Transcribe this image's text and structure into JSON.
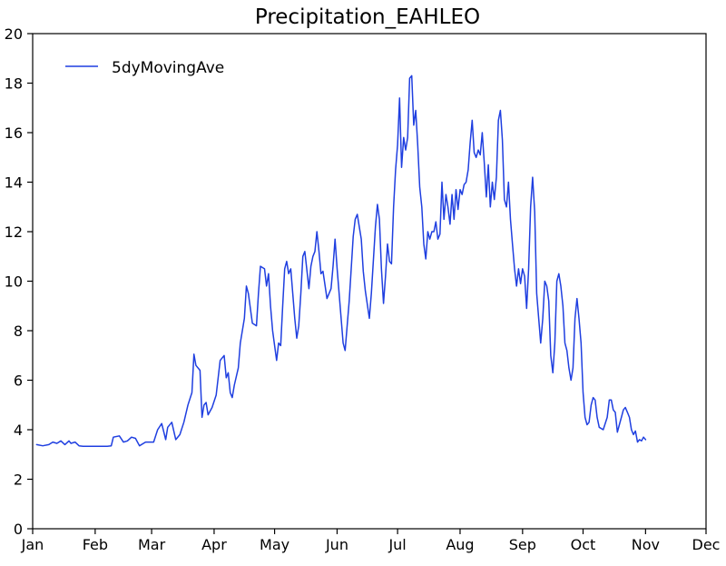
{
  "chart_data": {
    "type": "line",
    "title": "Precipitation_EAHLEO",
    "xlabel": "",
    "ylabel": "",
    "ylim": [
      0,
      20
    ],
    "yticks": [
      0,
      2,
      4,
      6,
      8,
      10,
      12,
      14,
      16,
      18,
      20
    ],
    "x_day_range": [
      1,
      335
    ],
    "xticks": [
      {
        "label": "Jan",
        "day": 1
      },
      {
        "label": "Feb",
        "day": 32
      },
      {
        "label": "Mar",
        "day": 60
      },
      {
        "label": "Apr",
        "day": 91
      },
      {
        "label": "May",
        "day": 121
      },
      {
        "label": "Jun",
        "day": 152
      },
      {
        "label": "Jul",
        "day": 182
      },
      {
        "label": "Aug",
        "day": 213
      },
      {
        "label": "Sep",
        "day": 244
      },
      {
        "label": "Oct",
        "day": 274
      },
      {
        "label": "Nov",
        "day": 305
      },
      {
        "label": "Dec",
        "day": 335
      }
    ],
    "grid": false,
    "legend_position": "top-left",
    "series": [
      {
        "name": "5dyMovingAve",
        "color": "#1f3fe0",
        "points": [
          [
            3,
            3.4
          ],
          [
            6,
            3.35
          ],
          [
            9,
            3.4
          ],
          [
            11,
            3.5
          ],
          [
            13,
            3.45
          ],
          [
            15,
            3.55
          ],
          [
            17,
            3.4
          ],
          [
            19,
            3.55
          ],
          [
            20,
            3.45
          ],
          [
            22,
            3.5
          ],
          [
            24,
            3.35
          ],
          [
            26,
            3.33
          ],
          [
            30,
            3.33
          ],
          [
            34,
            3.33
          ],
          [
            38,
            3.33
          ],
          [
            40,
            3.35
          ],
          [
            41,
            3.7
          ],
          [
            44,
            3.75
          ],
          [
            46,
            3.5
          ],
          [
            48,
            3.55
          ],
          [
            50,
            3.7
          ],
          [
            52,
            3.65
          ],
          [
            54,
            3.35
          ],
          [
            57,
            3.5
          ],
          [
            61,
            3.5
          ],
          [
            63,
            4.0
          ],
          [
            65,
            4.25
          ],
          [
            67,
            3.6
          ],
          [
            68,
            4.1
          ],
          [
            70,
            4.3
          ],
          [
            72,
            3.6
          ],
          [
            74,
            3.8
          ],
          [
            76,
            4.3
          ],
          [
            78,
            5.0
          ],
          [
            80,
            5.5
          ],
          [
            81,
            7.05
          ],
          [
            82,
            6.6
          ],
          [
            84,
            6.4
          ],
          [
            85,
            4.5
          ],
          [
            86,
            5.0
          ],
          [
            87,
            5.1
          ],
          [
            88,
            4.6
          ],
          [
            90,
            4.9
          ],
          [
            92,
            5.4
          ],
          [
            94,
            6.8
          ],
          [
            96,
            7.0
          ],
          [
            97,
            6.1
          ],
          [
            98,
            6.3
          ],
          [
            99,
            5.5
          ],
          [
            100,
            5.3
          ],
          [
            101,
            5.8
          ],
          [
            103,
            6.5
          ],
          [
            104,
            7.5
          ],
          [
            106,
            8.5
          ],
          [
            107,
            9.8
          ],
          [
            108,
            9.5
          ],
          [
            110,
            8.3
          ],
          [
            112,
            8.2
          ],
          [
            113,
            9.5
          ],
          [
            114,
            10.6
          ],
          [
            116,
            10.5
          ],
          [
            117,
            9.8
          ],
          [
            118,
            10.3
          ],
          [
            119,
            9.0
          ],
          [
            120,
            8.0
          ],
          [
            121,
            7.4
          ],
          [
            122,
            6.8
          ],
          [
            123,
            7.5
          ],
          [
            124,
            7.4
          ],
          [
            125,
            9.0
          ],
          [
            126,
            10.5
          ],
          [
            127,
            10.8
          ],
          [
            128,
            10.3
          ],
          [
            129,
            10.5
          ],
          [
            130,
            9.5
          ],
          [
            131,
            8.5
          ],
          [
            132,
            7.7
          ],
          [
            133,
            8.2
          ],
          [
            134,
            9.5
          ],
          [
            135,
            11.0
          ],
          [
            136,
            11.2
          ],
          [
            138,
            9.7
          ],
          [
            139,
            10.6
          ],
          [
            140,
            11.0
          ],
          [
            141,
            11.2
          ],
          [
            142,
            12.0
          ],
          [
            143,
            11.2
          ],
          [
            144,
            10.3
          ],
          [
            145,
            10.4
          ],
          [
            147,
            9.3
          ],
          [
            149,
            9.7
          ],
          [
            150,
            10.6
          ],
          [
            151,
            11.7
          ],
          [
            152,
            10.5
          ],
          [
            154,
            8.5
          ],
          [
            155,
            7.5
          ],
          [
            156,
            7.2
          ],
          [
            158,
            9.2
          ],
          [
            159,
            10.5
          ],
          [
            160,
            11.8
          ],
          [
            161,
            12.5
          ],
          [
            162,
            12.7
          ],
          [
            163,
            12.2
          ],
          [
            164,
            11.7
          ],
          [
            165,
            10.4
          ],
          [
            166,
            9.6
          ],
          [
            168,
            8.5
          ],
          [
            169,
            9.5
          ],
          [
            171,
            12.2
          ],
          [
            172,
            13.1
          ],
          [
            173,
            12.5
          ],
          [
            174,
            10.5
          ],
          [
            175,
            9.1
          ],
          [
            176,
            10.2
          ],
          [
            177,
            11.5
          ],
          [
            178,
            10.8
          ],
          [
            179,
            10.7
          ],
          [
            180,
            13.0
          ],
          [
            181,
            14.5
          ],
          [
            182,
            15.5
          ],
          [
            183,
            17.4
          ],
          [
            184,
            14.6
          ],
          [
            185,
            15.8
          ],
          [
            186,
            15.3
          ],
          [
            187,
            15.8
          ],
          [
            188,
            18.2
          ],
          [
            189,
            18.3
          ],
          [
            190,
            16.3
          ],
          [
            191,
            16.9
          ],
          [
            192,
            15.5
          ],
          [
            193,
            13.8
          ],
          [
            194,
            13.0
          ],
          [
            195,
            11.5
          ],
          [
            196,
            10.9
          ],
          [
            197,
            12.0
          ],
          [
            198,
            11.7
          ],
          [
            199,
            12.0
          ],
          [
            200,
            12.0
          ],
          [
            201,
            12.4
          ],
          [
            202,
            11.7
          ],
          [
            203,
            11.9
          ],
          [
            204,
            14.0
          ],
          [
            205,
            12.5
          ],
          [
            206,
            13.5
          ],
          [
            207,
            13.0
          ],
          [
            208,
            12.3
          ],
          [
            209,
            13.5
          ],
          [
            210,
            12.5
          ],
          [
            211,
            13.7
          ],
          [
            212,
            12.9
          ],
          [
            213,
            13.7
          ],
          [
            214,
            13.5
          ],
          [
            215,
            13.9
          ],
          [
            216,
            14.0
          ],
          [
            217,
            14.5
          ],
          [
            218,
            15.6
          ],
          [
            219,
            16.5
          ],
          [
            220,
            15.2
          ],
          [
            221,
            15.0
          ],
          [
            222,
            15.3
          ],
          [
            223,
            15.1
          ],
          [
            224,
            16.0
          ],
          [
            225,
            14.8
          ],
          [
            226,
            13.4
          ],
          [
            227,
            14.7
          ],
          [
            228,
            13.0
          ],
          [
            229,
            14.0
          ],
          [
            230,
            13.3
          ],
          [
            231,
            14.2
          ],
          [
            232,
            16.5
          ],
          [
            233,
            16.9
          ],
          [
            234,
            15.7
          ],
          [
            235,
            13.3
          ],
          [
            236,
            13.0
          ],
          [
            237,
            14.0
          ],
          [
            238,
            12.5
          ],
          [
            239,
            11.5
          ],
          [
            240,
            10.5
          ],
          [
            241,
            9.8
          ],
          [
            242,
            10.5
          ],
          [
            243,
            9.9
          ],
          [
            244,
            10.5
          ],
          [
            245,
            10.2
          ],
          [
            246,
            8.9
          ],
          [
            247,
            10.5
          ],
          [
            248,
            13.0
          ],
          [
            249,
            14.2
          ],
          [
            250,
            12.8
          ],
          [
            251,
            9.5
          ],
          [
            252,
            8.5
          ],
          [
            253,
            7.5
          ],
          [
            254,
            8.5
          ],
          [
            255,
            10.0
          ],
          [
            256,
            9.8
          ],
          [
            257,
            9.2
          ],
          [
            258,
            7.0
          ],
          [
            259,
            6.3
          ],
          [
            260,
            7.5
          ],
          [
            261,
            10.0
          ],
          [
            262,
            10.3
          ],
          [
            263,
            9.8
          ],
          [
            264,
            9.0
          ],
          [
            265,
            7.5
          ],
          [
            266,
            7.2
          ],
          [
            267,
            6.5
          ],
          [
            268,
            6.0
          ],
          [
            269,
            6.5
          ],
          [
            270,
            8.5
          ],
          [
            271,
            9.3
          ],
          [
            272,
            8.5
          ],
          [
            273,
            7.5
          ],
          [
            274,
            5.5
          ],
          [
            275,
            4.5
          ],
          [
            276,
            4.2
          ],
          [
            277,
            4.3
          ],
          [
            278,
            5.0
          ],
          [
            279,
            5.3
          ],
          [
            280,
            5.2
          ],
          [
            281,
            4.5
          ],
          [
            282,
            4.1
          ],
          [
            284,
            4.0
          ],
          [
            286,
            4.5
          ],
          [
            287,
            5.2
          ],
          [
            288,
            5.2
          ],
          [
            289,
            4.8
          ],
          [
            290,
            4.7
          ],
          [
            291,
            3.9
          ],
          [
            292,
            4.2
          ],
          [
            293,
            4.5
          ],
          [
            294,
            4.8
          ],
          [
            295,
            4.9
          ],
          [
            296,
            4.7
          ],
          [
            297,
            4.5
          ],
          [
            298,
            4.0
          ],
          [
            299,
            3.8
          ],
          [
            300,
            3.95
          ],
          [
            301,
            3.5
          ],
          [
            302,
            3.6
          ],
          [
            303,
            3.55
          ],
          [
            304,
            3.7
          ],
          [
            305,
            3.6
          ]
        ]
      }
    ]
  }
}
